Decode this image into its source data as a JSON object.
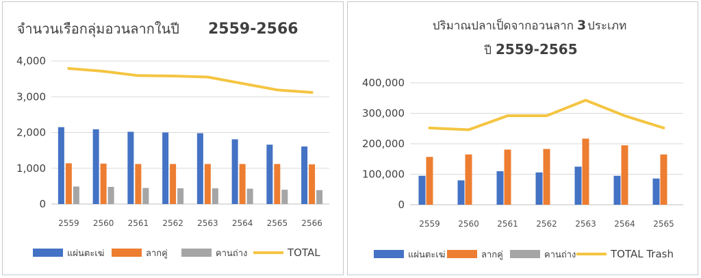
{
  "chart_data": [
    {
      "type": "bar",
      "title_thai": "จำนวนเรือกลุ่มอวนลากในปี",
      "title_years": "2559-2566",
      "categories": [
        "2559",
        "2560",
        "2561",
        "2562",
        "2563",
        "2564",
        "2565",
        "2566"
      ],
      "y_ticks": [
        "0",
        "1,000",
        "2,000",
        "3,000",
        "4,000"
      ],
      "ylim": [
        0,
        4000
      ],
      "grid": true,
      "legend_position": "bottom",
      "series": [
        {
          "name": "แผ่นตะเฆ่",
          "type": "bar",
          "color": "#4472C4",
          "values": [
            2150,
            2090,
            2020,
            2000,
            1980,
            1810,
            1660,
            1610
          ]
        },
        {
          "name": "ลากคู่",
          "type": "bar",
          "color": "#ED7D31",
          "values": [
            1140,
            1130,
            1120,
            1120,
            1120,
            1120,
            1120,
            1110
          ]
        },
        {
          "name": "คานถ่าง",
          "type": "bar",
          "color": "#A5A5A5",
          "values": [
            490,
            480,
            450,
            440,
            440,
            430,
            400,
            390
          ]
        },
        {
          "name": "TOTAL",
          "type": "line",
          "color": "#F4C542",
          "values": [
            3790,
            3710,
            3590,
            3580,
            3550,
            3370,
            3190,
            3120
          ]
        }
      ]
    },
    {
      "type": "bar",
      "title_line1_thai": "ปริมาณปลาเป็ดจากอวนลาก",
      "title_line1_num": "3",
      "title_line1_suffix": "ประเภท",
      "title_line2_thai": "ปี",
      "title_line2_years": "2559-2565",
      "categories": [
        "2559",
        "2560",
        "2561",
        "2562",
        "2563",
        "2564",
        "2565"
      ],
      "y_ticks": [
        "0",
        "100,000",
        "200,000",
        "300,000",
        "400,000"
      ],
      "ylim": [
        0,
        400000
      ],
      "grid": true,
      "legend_position": "bottom",
      "series": [
        {
          "name": "แผ่นตะเฆ่",
          "type": "bar",
          "color": "#4472C4",
          "values": [
            95000,
            80000,
            110000,
            106000,
            125000,
            95000,
            86000
          ]
        },
        {
          "name": "ลากคู่",
          "type": "bar",
          "color": "#ED7D31",
          "values": [
            157000,
            165000,
            181000,
            183000,
            217000,
            195000,
            165000
          ]
        },
        {
          "name": "คานถ่าง",
          "type": "bar",
          "color": "#A5A5A5",
          "values": [
            0,
            0,
            0,
            0,
            0,
            0,
            0
          ]
        },
        {
          "name": "TOTAL Trash",
          "type": "line",
          "color": "#F4C542",
          "values": [
            252000,
            246000,
            292000,
            292000,
            343000,
            292000,
            252000
          ]
        }
      ]
    }
  ]
}
